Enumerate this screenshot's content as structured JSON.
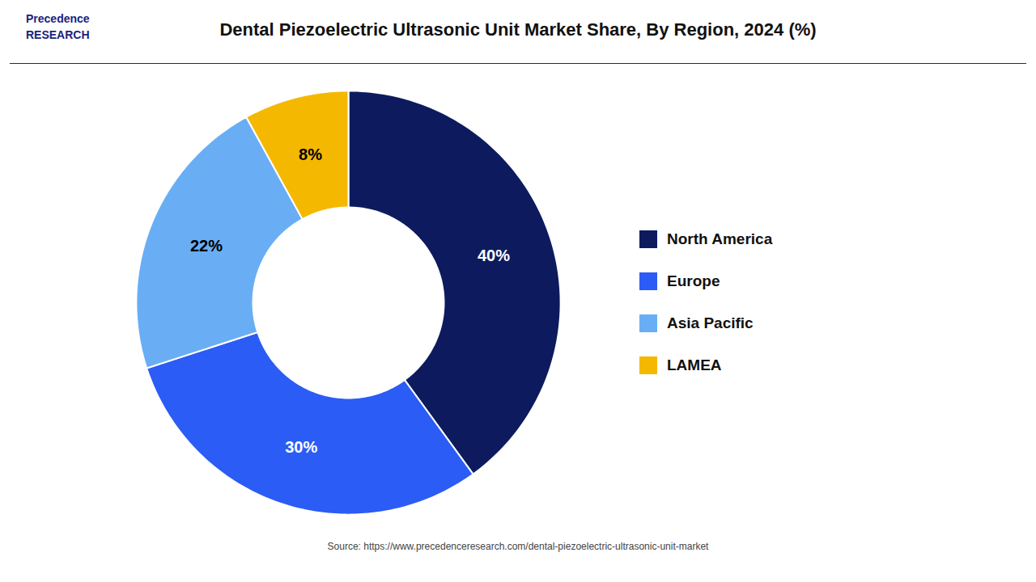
{
  "chart_data": {
    "type": "pie",
    "title": "Dental Piezoelectric Ultrasonic Unit Market Share, By Region, 2024 (%)",
    "categories": [
      "North America",
      "Europe",
      "Asia Pacific",
      "LAMEA"
    ],
    "values": [
      40,
      30,
      22,
      8
    ],
    "value_labels": [
      "40%",
      "30%",
      "22%",
      "8%"
    ],
    "data_labels": true,
    "colors": [
      "#0d1b5e",
      "#2b5cf5",
      "#69aef5",
      "#f5b800"
    ],
    "legend": "right",
    "annotations": [
      "Precedence\nRESEARCH"
    ],
    "source": "Source: https://www.precedenceresearch.com/dental-piezoelectric-ultrasonic-unit-market"
  }
}
